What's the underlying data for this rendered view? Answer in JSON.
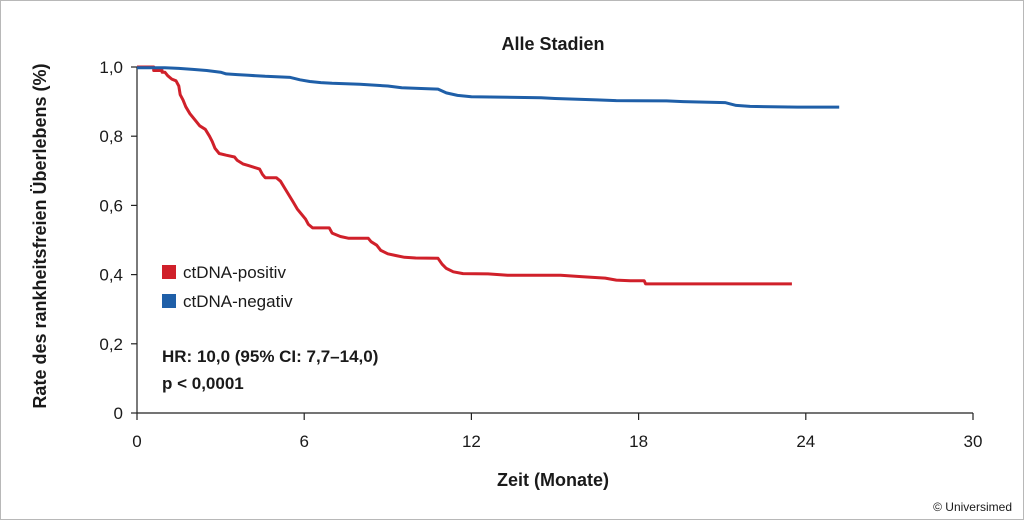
{
  "chart_data": {
    "type": "line",
    "title": "Alle Stadien",
    "xlabel": "Zeit (Monate)",
    "ylabel": "Rate des rankheitsfreien Überlebens (%)",
    "xlim": [
      0,
      30
    ],
    "ylim": [
      0,
      1.0
    ],
    "x_ticks": [
      0,
      6,
      12,
      18,
      24,
      30
    ],
    "x_tick_labels": [
      "0",
      "6",
      "12",
      "18",
      "24",
      "30"
    ],
    "y_ticks": [
      0,
      0.2,
      0.4,
      0.6,
      0.8,
      1.0
    ],
    "y_tick_labels": [
      "0",
      "0,2",
      "0,4",
      "0,6",
      "0,8",
      "1,0"
    ],
    "grid": false,
    "legend_position": "left-middle",
    "series": [
      {
        "name": "ctDNA-positiv",
        "color": "#d0202a",
        "points": [
          [
            0,
            1.0
          ],
          [
            0.6,
            1.0
          ],
          [
            0.6,
            0.99
          ],
          [
            0.9,
            0.99
          ],
          [
            0.9,
            0.985
          ],
          [
            1.0,
            0.985
          ],
          [
            1.1,
            0.975
          ],
          [
            1.25,
            0.965
          ],
          [
            1.4,
            0.96
          ],
          [
            1.5,
            0.945
          ],
          [
            1.55,
            0.92
          ],
          [
            1.65,
            0.905
          ],
          [
            1.75,
            0.885
          ],
          [
            1.9,
            0.865
          ],
          [
            2.1,
            0.845
          ],
          [
            2.25,
            0.83
          ],
          [
            2.45,
            0.82
          ],
          [
            2.6,
            0.8
          ],
          [
            2.7,
            0.785
          ],
          [
            2.8,
            0.765
          ],
          [
            2.95,
            0.75
          ],
          [
            3.2,
            0.745
          ],
          [
            3.5,
            0.74
          ],
          [
            3.6,
            0.73
          ],
          [
            3.8,
            0.72
          ],
          [
            4.0,
            0.715
          ],
          [
            4.2,
            0.71
          ],
          [
            4.4,
            0.705
          ],
          [
            4.5,
            0.69
          ],
          [
            4.6,
            0.68
          ],
          [
            5.0,
            0.68
          ],
          [
            5.15,
            0.67
          ],
          [
            5.3,
            0.65
          ],
          [
            5.45,
            0.63
          ],
          [
            5.6,
            0.61
          ],
          [
            5.75,
            0.59
          ],
          [
            5.9,
            0.575
          ],
          [
            6.05,
            0.56
          ],
          [
            6.15,
            0.545
          ],
          [
            6.3,
            0.535
          ],
          [
            6.9,
            0.535
          ],
          [
            7.0,
            0.52
          ],
          [
            7.3,
            0.51
          ],
          [
            7.6,
            0.505
          ],
          [
            8.3,
            0.505
          ],
          [
            8.4,
            0.495
          ],
          [
            8.6,
            0.485
          ],
          [
            8.75,
            0.47
          ],
          [
            9.0,
            0.46
          ],
          [
            9.3,
            0.455
          ],
          [
            9.6,
            0.45
          ],
          [
            10.0,
            0.448
          ],
          [
            10.8,
            0.447
          ],
          [
            10.95,
            0.43
          ],
          [
            11.1,
            0.418
          ],
          [
            11.35,
            0.408
          ],
          [
            11.7,
            0.403
          ],
          [
            12.6,
            0.402
          ],
          [
            13.3,
            0.398
          ],
          [
            15.2,
            0.398
          ],
          [
            16.0,
            0.394
          ],
          [
            16.8,
            0.39
          ],
          [
            17.2,
            0.384
          ],
          [
            17.7,
            0.382
          ],
          [
            18.2,
            0.382
          ],
          [
            18.25,
            0.373
          ],
          [
            23.5,
            0.373
          ]
        ]
      },
      {
        "name": "ctDNA-negativ",
        "color": "#1f5fa8",
        "points": [
          [
            0,
            0.998
          ],
          [
            1.0,
            0.998
          ],
          [
            1.5,
            0.996
          ],
          [
            2.0,
            0.993
          ],
          [
            2.5,
            0.99
          ],
          [
            3.0,
            0.985
          ],
          [
            3.2,
            0.98
          ],
          [
            3.6,
            0.978
          ],
          [
            4.0,
            0.976
          ],
          [
            4.6,
            0.973
          ],
          [
            5.0,
            0.972
          ],
          [
            5.5,
            0.97
          ],
          [
            5.85,
            0.963
          ],
          [
            6.2,
            0.958
          ],
          [
            6.6,
            0.955
          ],
          [
            7.0,
            0.953
          ],
          [
            8.0,
            0.95
          ],
          [
            9.0,
            0.945
          ],
          [
            9.5,
            0.94
          ],
          [
            10.2,
            0.938
          ],
          [
            10.8,
            0.936
          ],
          [
            11.1,
            0.925
          ],
          [
            11.5,
            0.918
          ],
          [
            12.0,
            0.914
          ],
          [
            13.0,
            0.913
          ],
          [
            14.5,
            0.911
          ],
          [
            15.0,
            0.909
          ],
          [
            16.5,
            0.905
          ],
          [
            17.2,
            0.903
          ],
          [
            19.0,
            0.902
          ],
          [
            19.6,
            0.9
          ],
          [
            21.1,
            0.897
          ],
          [
            21.5,
            0.889
          ],
          [
            22.0,
            0.886
          ],
          [
            23.7,
            0.884
          ],
          [
            25.2,
            0.884
          ]
        ]
      }
    ],
    "annotations": [
      "HR: 10,0 (95% CI: 7,7–14,0)",
      "p < 0,0001"
    ]
  },
  "credit": "© Universimed"
}
